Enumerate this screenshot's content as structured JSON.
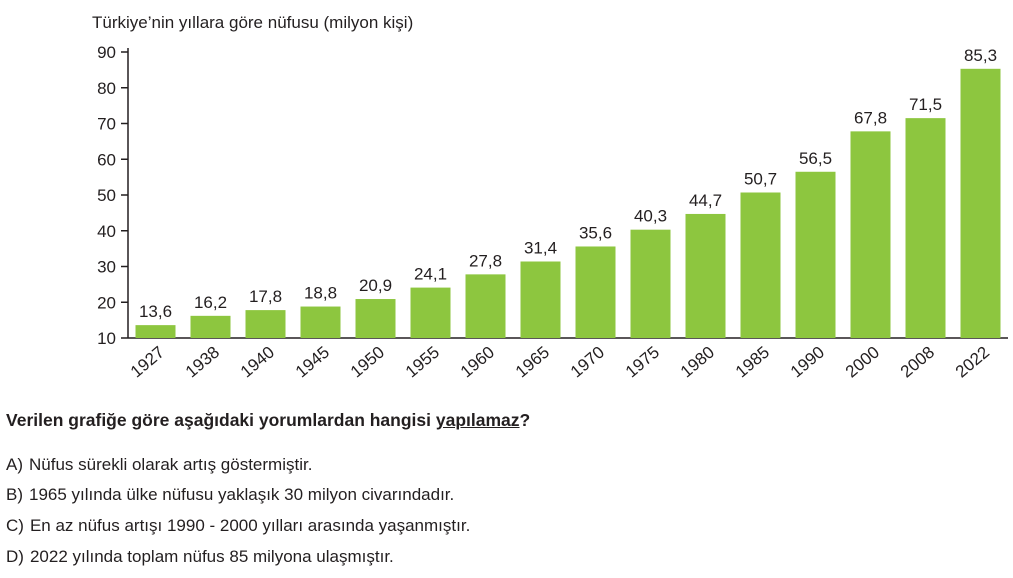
{
  "chart_data": {
    "type": "bar",
    "title": "Türkiye’nin yıllara göre nüfusu (milyon kişi)",
    "categories": [
      "1927",
      "1938",
      "1940",
      "1945",
      "1950",
      "1955",
      "1960",
      "1965",
      "1970",
      "1975",
      "1980",
      "1985",
      "1990",
      "2000",
      "2008",
      "2022"
    ],
    "values": [
      13.6,
      16.2,
      17.8,
      18.8,
      20.9,
      24.1,
      27.8,
      31.4,
      35.6,
      40.3,
      44.7,
      50.7,
      56.5,
      67.8,
      71.5,
      85.3
    ],
    "value_labels": [
      "13,6",
      "16,2",
      "17,8",
      "18,8",
      "20,9",
      "24,1",
      "27,8",
      "31,4",
      "35,6",
      "40,3",
      "44,7",
      "50,7",
      "56,5",
      "67,8",
      "71,5",
      "85,3"
    ],
    "color": "#8dc63f",
    "ylim": [
      10,
      90
    ],
    "yticks": [
      10,
      20,
      30,
      40,
      50,
      60,
      70,
      80,
      90
    ],
    "grid": false
  },
  "question": {
    "before": "Verilen grafiğe göre aşağıdaki yorumlardan hangisi ",
    "emphasis": "yapılamaz",
    "after": "?"
  },
  "options": [
    {
      "label": "A)",
      "text": "Nüfus sürekli olarak artış göstermiştir."
    },
    {
      "label": "B)",
      "text": "1965 yılında ülke nüfusu yaklaşık 30 milyon civarındadır."
    },
    {
      "label": "C)",
      "text": "En az nüfus artışı 1990 - 2000 yılları arasında yaşanmıştır."
    },
    {
      "label": "D)",
      "text": "2022 yılında toplam nüfus 85 milyona ulaşmıştır."
    }
  ]
}
